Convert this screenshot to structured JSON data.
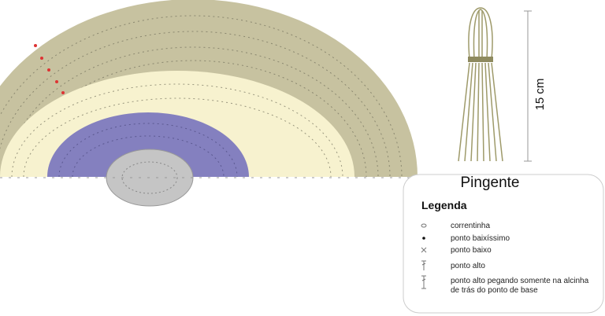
{
  "title": "Pingente",
  "measure": "15 cm",
  "legend": {
    "title": "Legenda",
    "items": [
      [
        "correntinha"
      ],
      [
        "ponto baixíssimo"
      ],
      [
        "ponto baixo"
      ],
      [
        "ponto alto"
      ],
      [
        "ponto alto pegando somente na alcinha",
        "de trás do ponto de base"
      ]
    ]
  }
}
